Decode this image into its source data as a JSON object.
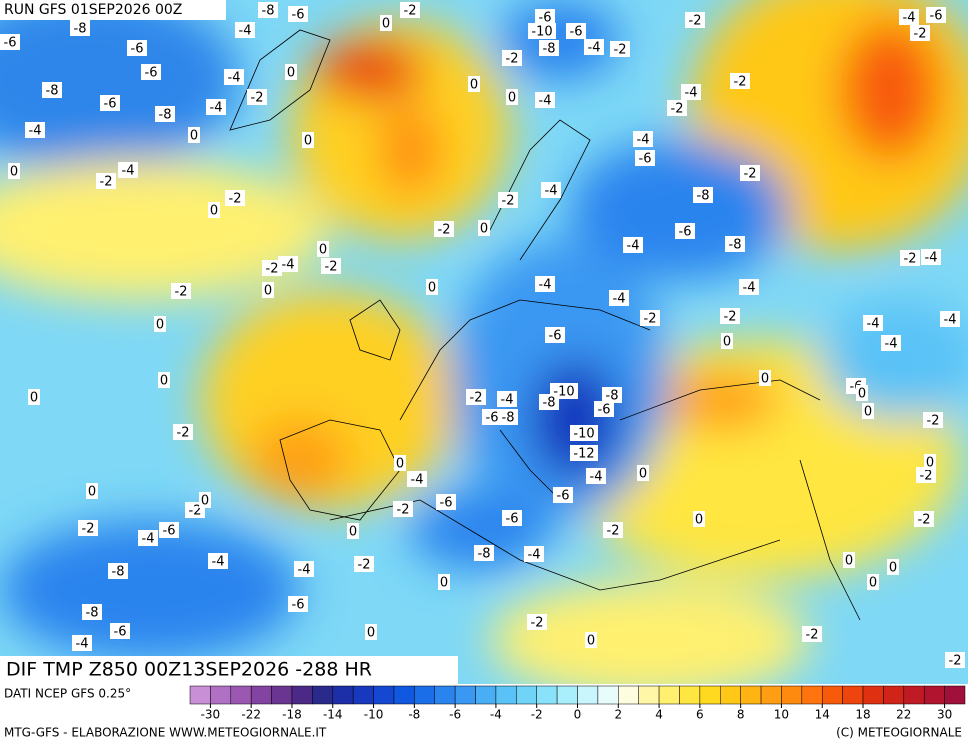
{
  "header": {
    "run": "RUN GFS 01SEP2026 00Z"
  },
  "map": {
    "field_title": "DIF TMP Z850 00Z13SEP2026 -288 HR",
    "contour_labels": [
      -8,
      -6,
      -6,
      -6,
      -8,
      -6,
      -8,
      -4,
      -4,
      -4,
      -2,
      0,
      0,
      0,
      -2,
      -6,
      -8,
      -4,
      0,
      -2,
      -4,
      0,
      -2,
      0,
      0,
      -2,
      -2,
      -4,
      -2,
      0,
      0,
      -2,
      0,
      0,
      0,
      -2,
      0,
      -2,
      -4,
      -6,
      -2,
      0,
      -4,
      -8,
      -8,
      -6,
      -4,
      -4,
      -2,
      -6,
      0,
      0,
      0,
      -2,
      0,
      -4,
      -6,
      -6,
      -8,
      -4,
      -6,
      -2,
      0,
      -2,
      0,
      -4,
      -12,
      -10,
      -10,
      -8,
      -8,
      -6,
      -4,
      -2,
      -8,
      -6,
      -6,
      -4,
      -4,
      -2,
      0,
      -4,
      -6,
      -8,
      -8,
      -6,
      -4,
      -4,
      -2,
      0,
      -2,
      -4,
      -2,
      -2,
      -6,
      -10,
      -8,
      -6,
      -4,
      -2,
      -2,
      0,
      -4,
      0,
      -4,
      -2,
      -2,
      -4,
      -6,
      -2,
      -2,
      -4,
      -4,
      -4,
      -4,
      -6,
      0,
      -2,
      -2,
      -2,
      0,
      0,
      0,
      -2,
      -2,
      0,
      0,
      0,
      0
    ]
  },
  "legend": {
    "source": "DATI NCEP GFS 0.25°",
    "colors": [
      "#c88fd6",
      "#b070c4",
      "#9a58b2",
      "#8244a0",
      "#6a3590",
      "#4a2a86",
      "#2a2a8c",
      "#1c2fa8",
      "#1838be",
      "#1448d2",
      "#1058e0",
      "#1a6ee8",
      "#2a84ee",
      "#3a98f2",
      "#4aaef5",
      "#5ac2f7",
      "#70d4f8",
      "#8ae2fa",
      "#a8eefb",
      "#c8f6fc",
      "#e8fcfc",
      "#fffde0",
      "#fff6a8",
      "#fff070",
      "#ffe640",
      "#ffd820",
      "#ffc818",
      "#ffb414",
      "#ff9e12",
      "#ff8a10",
      "#ff740e",
      "#f85a0c",
      "#ee440e",
      "#e03012",
      "#d02418",
      "#c01a24",
      "#b0142e",
      "#a0103a"
    ],
    "ticks": [
      -30,
      -22,
      -18,
      -14,
      -10,
      -8,
      -6,
      -4,
      -2,
      0,
      2,
      4,
      6,
      8,
      10,
      14,
      18,
      22,
      30
    ]
  },
  "footer": {
    "left": "MTG-GFS - ELABORAZIONE WWW.METEOGIORNALE.IT",
    "right": "(C) METEOGIORNALE"
  }
}
